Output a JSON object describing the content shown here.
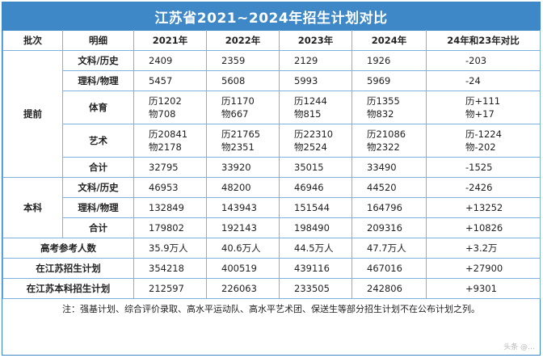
{
  "title": "江苏省2021~2024年招生计划对比",
  "headers": [
    "批次",
    "明细",
    "2021年",
    "2022年",
    "2023年",
    "2024年",
    "24年和23年对比"
  ],
  "batch_early": "提前",
  "batch_regular": "本科",
  "rows": {
    "early_wen": {
      "detail": "文科/历史",
      "v2021": "2409",
      "v2022": "2359",
      "v2023": "2129",
      "v2024": "1926",
      "diff": "-203"
    },
    "early_li": {
      "detail": "理科/物理",
      "v2021": "5457",
      "v2022": "5608",
      "v2023": "5993",
      "v2024": "5969",
      "diff": "-24"
    },
    "early_pe": {
      "detail": "体育",
      "v2021": [
        "历1202",
        "物708"
      ],
      "v2022": [
        "历1170",
        "物667"
      ],
      "v2023": [
        "历1244",
        "物815"
      ],
      "v2024": [
        "历1355",
        "物832"
      ],
      "diff": [
        "历+111",
        "物+17"
      ]
    },
    "early_art": {
      "detail": "艺术",
      "v2021": [
        "历20841",
        "物2178"
      ],
      "v2022": [
        "历21765",
        "物2351"
      ],
      "v2023": [
        "历22310",
        "物2524"
      ],
      "v2024": [
        "历21086",
        "物2322"
      ],
      "diff": [
        "历-1224",
        "物-202"
      ]
    },
    "early_total": {
      "detail": "合计",
      "v2021": "32795",
      "v2022": "33920",
      "v2023": "35015",
      "v2024": "33490",
      "diff": "-1525"
    },
    "reg_wen": {
      "detail": "文科/历史",
      "v2021": "46953",
      "v2022": "48200",
      "v2023": "46946",
      "v2024": "44520",
      "diff": "-2426"
    },
    "reg_li": {
      "detail": "理科/物理",
      "v2021": "132849",
      "v2022": "143943",
      "v2023": "151544",
      "v2024": "164796",
      "diff": "+13252"
    },
    "reg_total": {
      "detail": "合计",
      "v2021": "179802",
      "v2022": "192143",
      "v2023": "198490",
      "v2024": "209316",
      "diff": "+10826"
    },
    "examinees": {
      "label": "高考参考人数",
      "v2021": "35.9万人",
      "v2022": "40.6万人",
      "v2023": "44.5万人",
      "v2024": "47.7万人",
      "diff": "+3.2万"
    },
    "js_plan": {
      "label": "在江苏招生计划",
      "v2021": "354218",
      "v2022": "400519",
      "v2023": "439116",
      "v2024": "467016",
      "diff": "+27900"
    },
    "js_bk_plan": {
      "label": "在江苏本科招生计划",
      "v2021": "212597",
      "v2022": "226063",
      "v2023": "233505",
      "v2024": "242806",
      "diff": "+9301"
    }
  },
  "note": "注：强基计划、综合评价录取、高水平运动队、高水平艺术团、保送生等部分招生计划不在公布计划之列。",
  "watermark": "头条 @…"
}
